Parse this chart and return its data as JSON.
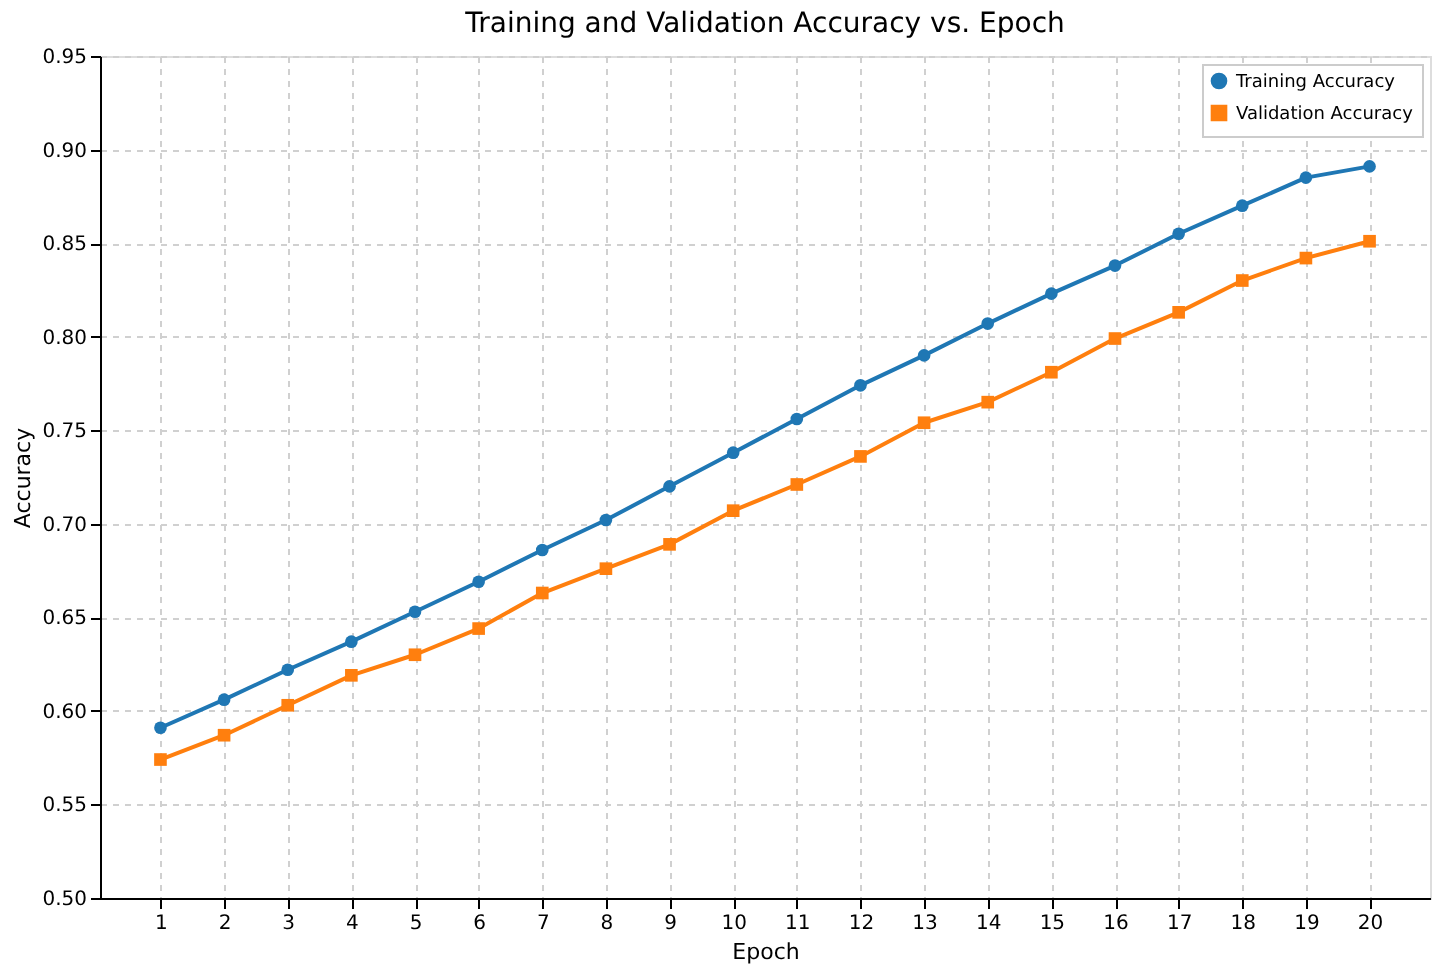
{
  "chart_data": {
    "type": "line",
    "title": "Training and Validation Accuracy vs. Epoch",
    "xlabel": "Epoch",
    "ylabel": "Accuracy",
    "x": [
      1,
      2,
      3,
      4,
      5,
      6,
      7,
      8,
      9,
      10,
      11,
      12,
      13,
      14,
      15,
      16,
      17,
      18,
      19,
      20
    ],
    "xlim": [
      0.05,
      20.95
    ],
    "xticks": [
      1,
      2,
      3,
      4,
      5,
      6,
      7,
      8,
      9,
      10,
      11,
      12,
      13,
      14,
      15,
      16,
      17,
      18,
      19,
      20
    ],
    "ylim": [
      0.5,
      0.95
    ],
    "yticks": [
      {
        "value": 0.5,
        "label": "0.50"
      },
      0.55,
      {
        "value": 0.6,
        "label": "0.60"
      },
      0.65,
      {
        "value": 0.7,
        "label": "0.70"
      },
      0.75,
      {
        "value": 0.8,
        "label": "0.80"
      },
      0.85,
      {
        "value": 0.9,
        "label": "0.90"
      },
      0.95
    ],
    "grid": true,
    "legend": "top right",
    "line_style": "solid",
    "series": [
      {
        "name": "Training Accuracy",
        "color": "#1f77b4",
        "marker": "circle",
        "values": [
          0.591,
          0.606,
          0.622,
          0.637,
          0.653,
          0.669,
          0.686,
          0.702,
          0.72,
          0.738,
          0.756,
          0.774,
          0.79,
          0.807,
          0.823,
          0.838,
          0.855,
          0.87,
          0.885,
          0.891
        ]
      },
      {
        "name": "Validation Accuracy",
        "color": "#ff7f0e",
        "marker": "square",
        "values": [
          0.574,
          0.587,
          0.603,
          0.619,
          0.63,
          0.644,
          0.663,
          0.676,
          0.689,
          0.707,
          0.721,
          0.736,
          0.754,
          0.765,
          0.781,
          0.799,
          0.813,
          0.83,
          0.842,
          0.851
        ]
      }
    ]
  }
}
